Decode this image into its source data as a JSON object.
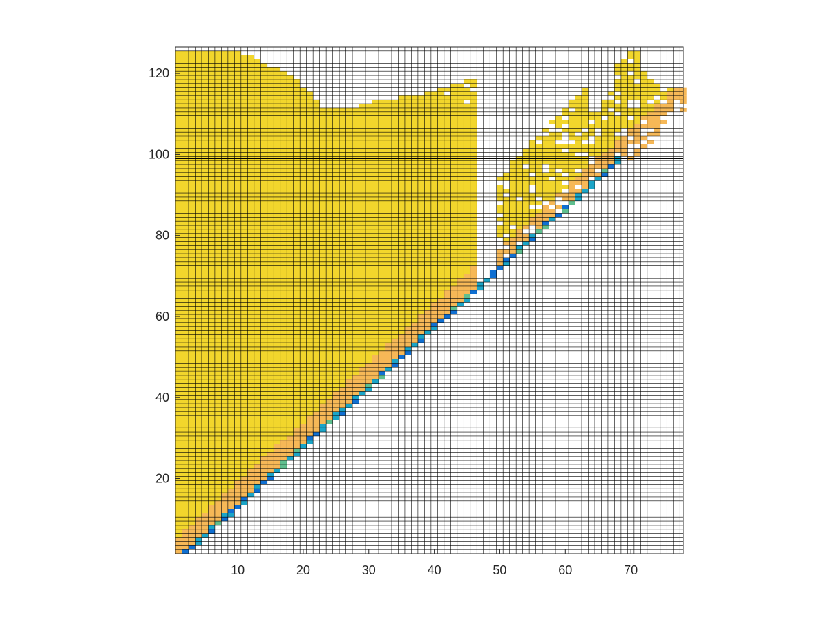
{
  "figure": {
    "background": "#ffffff"
  },
  "chart_data": {
    "type": "heatmap",
    "title": "",
    "xlabel": "",
    "ylabel": "",
    "xlim": [
      0.5,
      78
    ],
    "ylim": [
      1.5,
      126.5
    ],
    "x_ticks": [
      10,
      20,
      30,
      40,
      50,
      60,
      70
    ],
    "y_ticks": [
      20,
      40,
      60,
      80,
      100,
      120
    ],
    "x_tick_labels": [
      "10",
      "20",
      "30",
      "40",
      "50",
      "60",
      "70"
    ],
    "y_tick_labels": [
      "20",
      "40",
      "60",
      "80",
      "100",
      "120"
    ],
    "grid": "on (black cell edges)",
    "reference_line": {
      "y": 99,
      "color": "#000000"
    },
    "colormap": "parula",
    "colors": {
      "diagonal_low": "#0f6fd2",
      "diagonal_mid": "#1aa5c8",
      "diagonal_alt": "#5fbf8f",
      "near_diagonal": "#f6b857",
      "bulk": "#f2d62c",
      "empty": "#ffffff",
      "edge": "#000000",
      "axis": "#262626"
    },
    "cells": {
      "note_diagonal": "colored cells follow y = 1.47*x - 1.5 from x=2 to x=68",
      "fill_region": "filled for y from the diagonal up to the top boundary",
      "upper_boundary_points": [
        [
          1,
          125
        ],
        [
          10,
          125
        ],
        [
          13,
          123
        ],
        [
          19,
          118
        ],
        [
          23,
          111
        ],
        [
          28,
          111
        ],
        [
          31,
          113
        ],
        [
          38,
          114
        ],
        [
          45,
          118
        ],
        [
          46,
          118
        ],
        [
          47,
          112
        ],
        [
          45,
          104
        ],
        [
          43,
          97
        ],
        [
          40,
          90
        ],
        [
          38,
          84
        ],
        [
          36,
          77
        ]
      ],
      "right_band_points": [
        [
          50,
          105
        ],
        [
          55,
          111
        ],
        [
          58,
          118
        ],
        [
          60,
          121
        ],
        [
          62,
          121
        ],
        [
          63,
          118
        ],
        [
          63,
          110
        ],
        [
          65,
          110
        ],
        [
          67,
          115
        ],
        [
          68,
          122
        ],
        [
          70,
          125
        ],
        [
          71,
          125
        ],
        [
          72,
          120
        ],
        [
          73,
          118
        ],
        [
          75,
          115
        ],
        [
          77,
          117
        ],
        [
          78,
          116
        ]
      ]
    }
  }
}
